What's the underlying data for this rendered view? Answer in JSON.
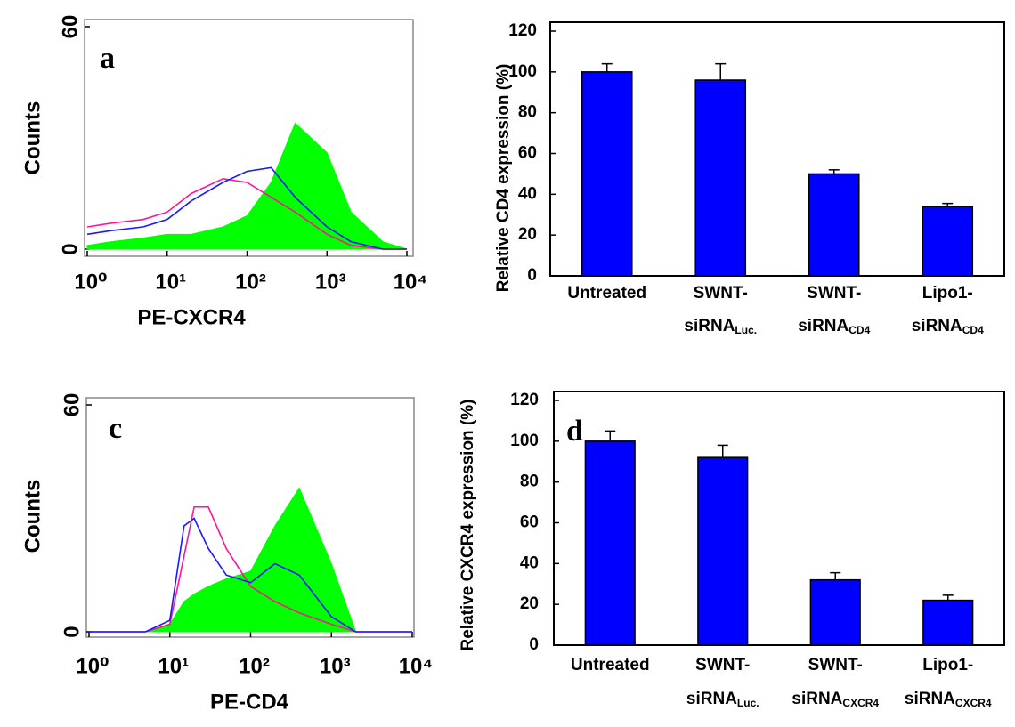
{
  "chart_data": [
    {
      "type": "line",
      "label": "a",
      "y_label": "Counts",
      "x_label": "PE-CXCR4",
      "xscale": "log",
      "xlim": [
        1,
        10000
      ],
      "xticks": [
        {
          "value": 1,
          "label": "10⁰"
        },
        {
          "value": 10,
          "label": "10¹"
        },
        {
          "value": 100,
          "label": "10²"
        },
        {
          "value": 1000,
          "label": "10³"
        },
        {
          "value": 10000,
          "label": "10⁴"
        }
      ],
      "ylim": [
        0,
        60
      ],
      "yticks": [
        0,
        60
      ],
      "x": [
        1,
        2,
        5,
        10,
        20,
        50,
        100,
        200,
        400,
        1000,
        2000,
        5000,
        10000
      ],
      "series": [
        {
          "color": "#00ff00",
          "filled": true,
          "values": [
            1,
            2,
            3,
            4,
            4,
            6,
            9,
            18,
            34,
            26,
            10,
            2,
            0
          ]
        },
        {
          "color": "#ff1493",
          "filled": false,
          "values": [
            6,
            7,
            8,
            10,
            15,
            19,
            18,
            14,
            10,
            4,
            1,
            0,
            0
          ]
        },
        {
          "color": "#1a1aff",
          "filled": false,
          "values": [
            4,
            5,
            6,
            8,
            13,
            18,
            21,
            22,
            14,
            6,
            2,
            0,
            0
          ]
        }
      ]
    },
    {
      "type": "bar",
      "y_label": "Relative CD4 expression (%)",
      "color": "#0000ff",
      "categories": [
        [
          "Untreated"
        ],
        [
          "SWNT-",
          "siRNA",
          "Luc."
        ],
        [
          "SWNT-",
          "siRNA",
          "CD4"
        ],
        [
          "Lipo1-",
          "siRNA",
          "CD4"
        ]
      ],
      "values": [
        100,
        96,
        50,
        34
      ],
      "errors": [
        4,
        8,
        2,
        1.5
      ],
      "ylim": [
        0,
        120
      ],
      "yticks": [
        0,
        20,
        40,
        60,
        80,
        100,
        120
      ]
    },
    {
      "type": "line",
      "label": "c",
      "y_label": "Counts",
      "x_label": "PE-CD4",
      "xscale": "log",
      "xlim": [
        1,
        10000
      ],
      "xticks": [
        {
          "value": 1,
          "label": "10⁰"
        },
        {
          "value": 10,
          "label": "10¹"
        },
        {
          "value": 100,
          "label": "10²"
        },
        {
          "value": 1000,
          "label": "10³"
        },
        {
          "value": 10000,
          "label": "10⁴"
        }
      ],
      "ylim": [
        0,
        60
      ],
      "yticks": [
        0,
        60
      ],
      "x": [
        1,
        5,
        10,
        15,
        20,
        30,
        50,
        100,
        200,
        400,
        1000,
        2000,
        5000,
        10000
      ],
      "series": [
        {
          "color": "#00ff00",
          "filled": true,
          "values": [
            0,
            0,
            2,
            8,
            10,
            12,
            14,
            16,
            28,
            38,
            18,
            0,
            0,
            0
          ]
        },
        {
          "color": "#ff1493",
          "filled": false,
          "values": [
            0,
            0,
            2,
            20,
            33,
            33,
            22,
            12,
            8,
            5,
            2,
            0,
            0,
            0
          ]
        },
        {
          "color": "#1a1aff",
          "filled": false,
          "values": [
            0,
            0,
            3,
            28,
            30,
            22,
            15,
            13,
            18,
            15,
            4,
            0,
            0,
            0
          ]
        }
      ]
    },
    {
      "type": "bar",
      "label": "d",
      "y_label": "Relative CXCR4 expression (%)",
      "color": "#0000ff",
      "categories": [
        [
          "Untreated"
        ],
        [
          "SWNT-",
          "siRNA",
          "Luc."
        ],
        [
          "SWNT-",
          "siRNA",
          "CXCR4"
        ],
        [
          "Lipo1-",
          "siRNA",
          "CXCR4"
        ]
      ],
      "values": [
        100,
        92,
        32,
        22
      ],
      "errors": [
        5,
        6,
        3.5,
        2.5
      ],
      "ylim": [
        0,
        120
      ],
      "yticks": [
        0,
        20,
        40,
        60,
        80,
        100,
        120
      ]
    }
  ]
}
